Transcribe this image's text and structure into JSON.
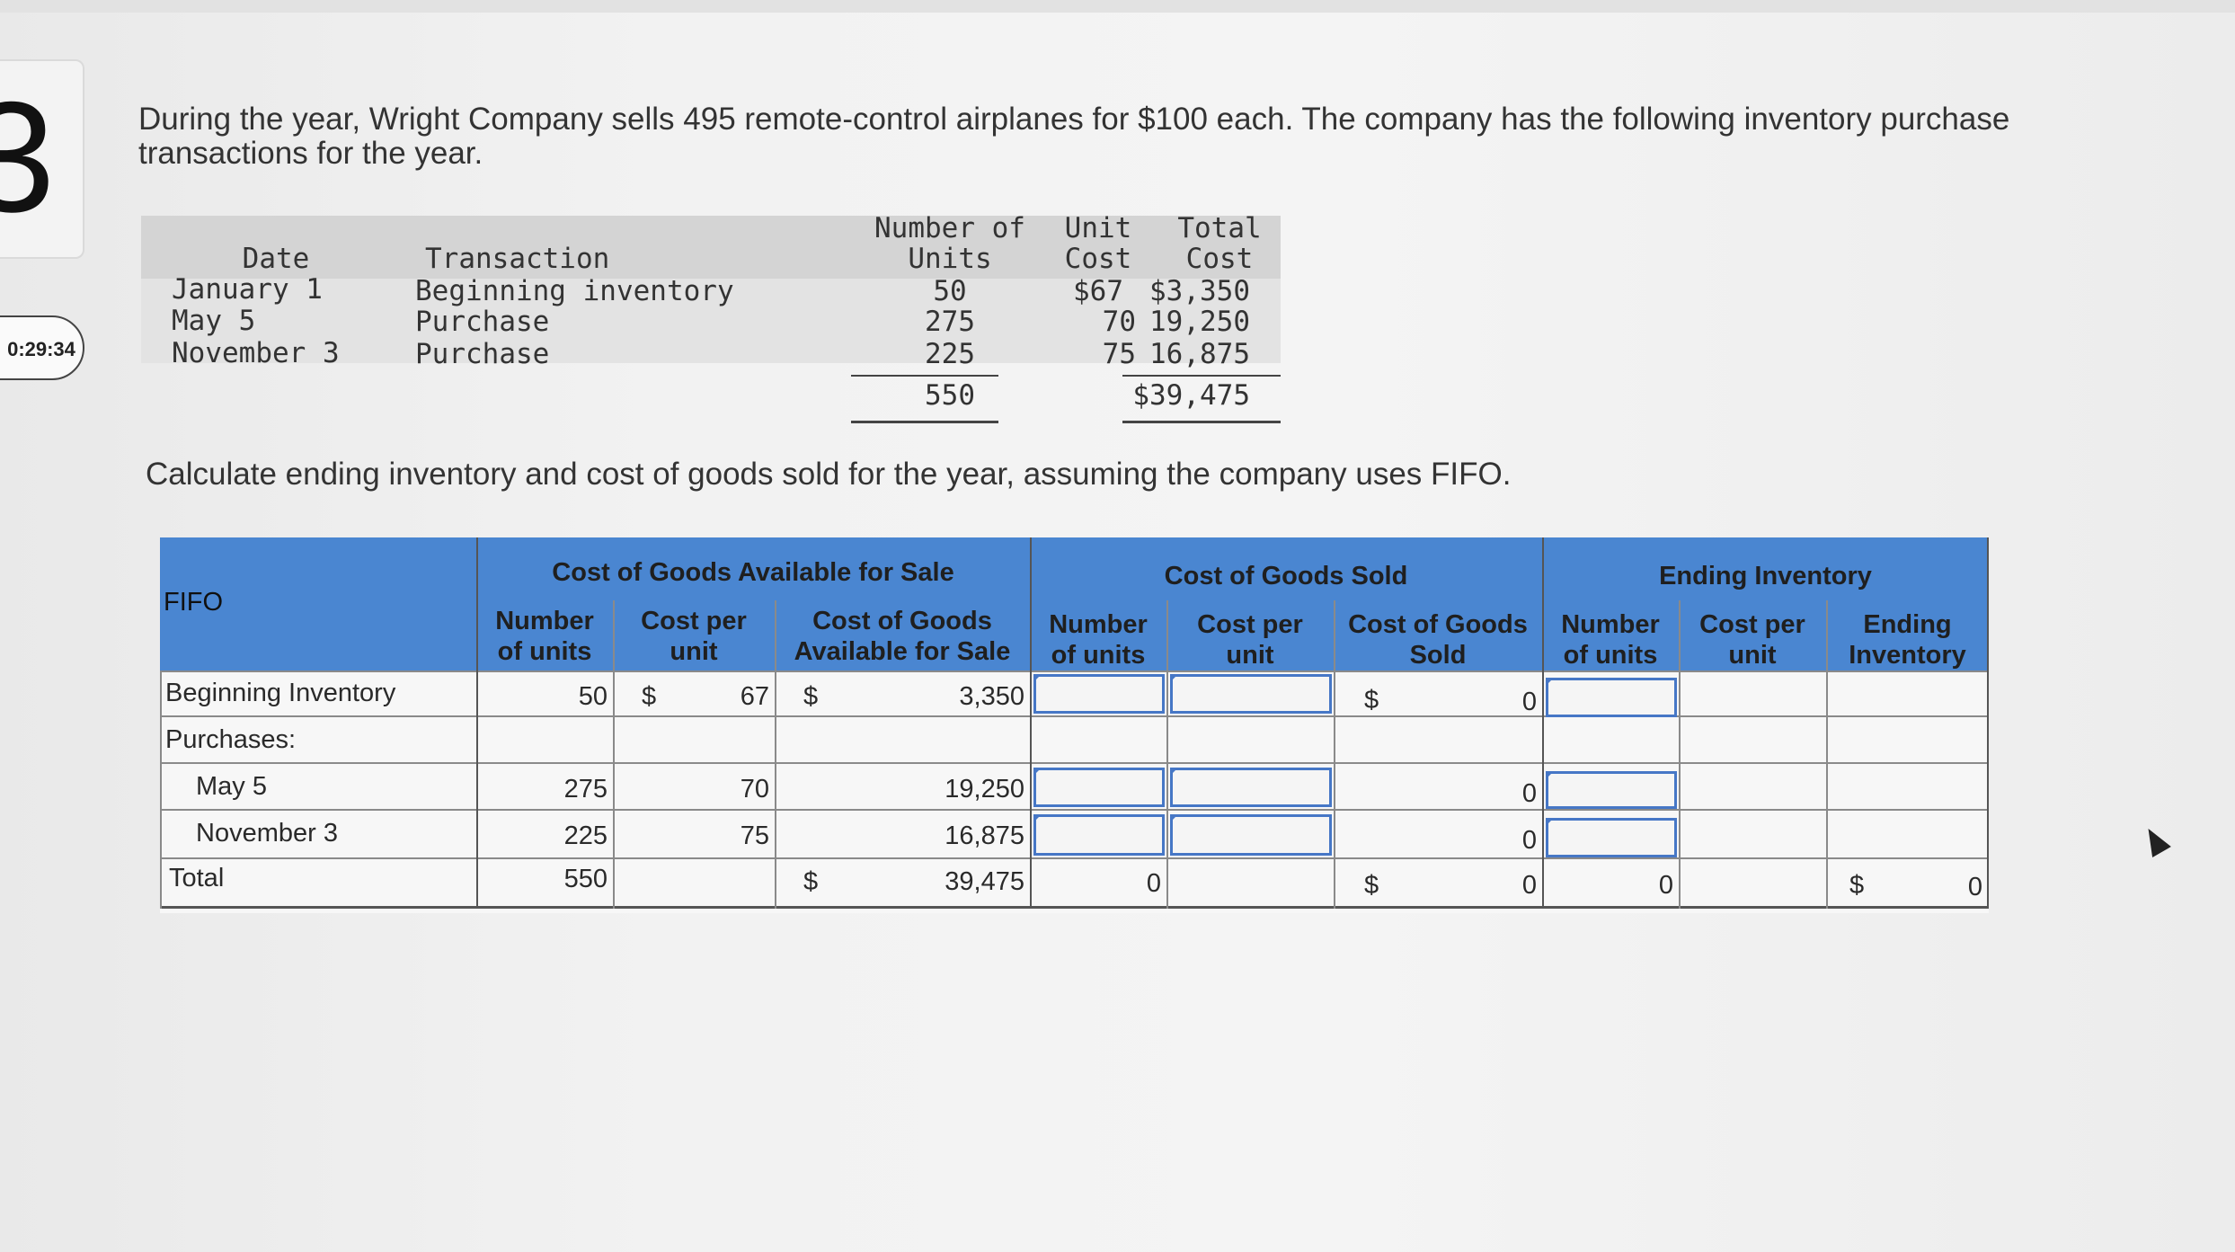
{
  "question": {
    "number": "3",
    "timer": "0:29:34",
    "intro": "During the year, Wright Company sells 495 remote-control airplanes for $100 each. The company has the following inventory purchase transactions for the year.",
    "prompt": "Calculate ending inventory and cost of goods sold for the year, assuming the company uses FIFO."
  },
  "purchases_table": {
    "headers": {
      "date": "Date",
      "transaction": "Transaction",
      "units_line1": "Number of",
      "units_line2": "Units",
      "cost_line1": "Unit",
      "cost_line2": "Cost",
      "total_line1": "Total",
      "total_line2": "Cost"
    },
    "rows": [
      {
        "date": "January 1",
        "transaction": "Beginning inventory",
        "units": "50",
        "unit_cost": "$67",
        "total": "$3,350"
      },
      {
        "date": "May 5",
        "transaction": "Purchase",
        "units": "275",
        "unit_cost": "70",
        "total": "19,250"
      },
      {
        "date": "November 3",
        "transaction": "Purchase",
        "units": "225",
        "unit_cost": "75",
        "total": "16,875"
      }
    ],
    "total_units": "550",
    "total_cost": "$39,475"
  },
  "fifo_table": {
    "label": "FIFO",
    "groups": {
      "available": "Cost of Goods Available for Sale",
      "sold": "Cost of Goods Sold",
      "ending": "Ending Inventory"
    },
    "subheaders": {
      "avail_units": [
        "Number",
        "of units"
      ],
      "avail_cost": [
        "Cost per",
        "unit"
      ],
      "avail_total": [
        "Cost of Goods",
        "Available for Sale"
      ],
      "sold_units": [
        "Number",
        "of units"
      ],
      "sold_cost": [
        "Cost per",
        "unit"
      ],
      "sold_total": [
        "Cost of Goods",
        "Sold"
      ],
      "end_units": [
        "Number",
        "of units"
      ],
      "end_cost": [
        "Cost per",
        "unit"
      ],
      "end_total": [
        "Ending",
        "Inventory"
      ]
    },
    "rows": {
      "beginning": {
        "label": "Beginning Inventory",
        "units": "50",
        "dollar": "$",
        "cost": "67",
        "dollar2": "$",
        "total": "3,350",
        "sold_dollar": "$",
        "sold_total": "0"
      },
      "purchases": {
        "label": "Purchases:"
      },
      "may": {
        "label": "May 5",
        "units": "275",
        "cost": "70",
        "total": "19,250",
        "sold_total": "0"
      },
      "nov": {
        "label": "November 3",
        "units": "225",
        "cost": "75",
        "total": "16,875",
        "sold_total": "0"
      },
      "total": {
        "label": "Total",
        "units": "550",
        "dollar": "$",
        "total": "39,475",
        "sold_units": "0",
        "sold_dollar": "$",
        "sold_total": "0",
        "end_units": "0",
        "end_dollar": "$",
        "end_total": "0"
      }
    }
  }
}
